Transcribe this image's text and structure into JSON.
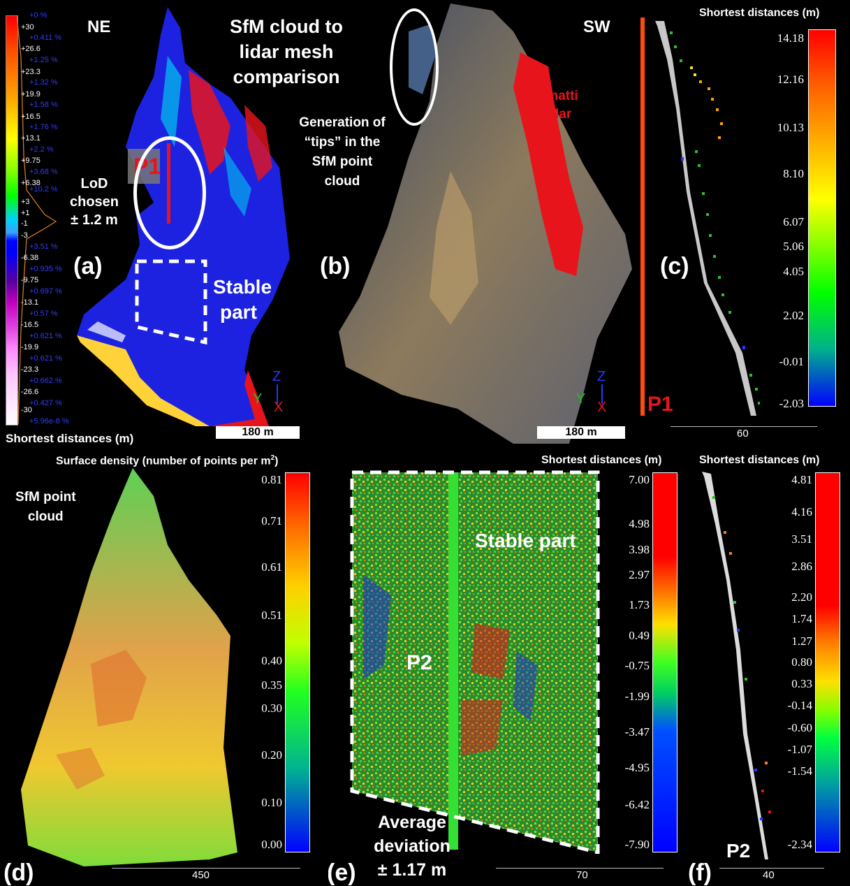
{
  "panel_a": {
    "label": "(a)",
    "ne": "NE",
    "title_lines": [
      "SfM cloud to",
      "lidar mesh",
      "comparison"
    ],
    "lod_lines": [
      "LoD",
      "chosen",
      "± 1.2 m"
    ],
    "p1": "P1",
    "stable_lines": [
      "Stable",
      "part"
    ],
    "scale": "180 m",
    "axes": {
      "z": "Z",
      "y": "Y",
      "x": "X"
    },
    "bottom_title": "Shortest distances (m)",
    "ticks": [
      "+30",
      "+26.6",
      "+23.3",
      "+19.9",
      "+16.5",
      "+13.1",
      "+9.75",
      "+6.38",
      "+3",
      "+1",
      "-1",
      "-3",
      "-6.38",
      "-9.75",
      "-13.1",
      "-16.5",
      "-19.9",
      "-23.3",
      "-26.6",
      "-30"
    ],
    "pcts": [
      "+0 %",
      "+0.411 %",
      "+1.25 %",
      "+1.32 %",
      "+1.58 %",
      "+1.76 %",
      "+2.2 %",
      "+3.68 %",
      "+10.2 %",
      "+3.51 %",
      "+0.935 %",
      "+0.697 %",
      "+0.57 %",
      "+0.621 %",
      "+0.621 %",
      "+0.662 %",
      "+0.427 %",
      "+5.96e-8 %"
    ]
  },
  "panel_b": {
    "label": "(b)",
    "sw": "SW",
    "gen_lines": [
      "Generation of",
      "“tips” in the",
      "SfM point",
      "cloud"
    ],
    "bonatti_lines": [
      "Bonatti",
      "Pillar"
    ],
    "scale": "180 m",
    "axes": {
      "z": "Z",
      "y": "Y",
      "x": "X"
    }
  },
  "panel_c": {
    "label": "(c)",
    "title": "Shortest distances (m)",
    "p1": "P1",
    "ticks": [
      "14.18",
      "12.16",
      "10.13",
      "8.10",
      "6.07",
      "5.06",
      "4.05",
      "2.02",
      "-0.01",
      "-2.03"
    ],
    "scale": "60"
  },
  "panel_d": {
    "label": "(d)",
    "title": "Surface density (number of points per m",
    "title_sup": "2",
    "title_end": ")",
    "cloud_lines": [
      "SfM point",
      "cloud"
    ],
    "ticks": [
      "0.81",
      "0.71",
      "0.61",
      "0.51",
      "0.40",
      "0.35",
      "0.30",
      "0.20",
      "0.10",
      "0.00"
    ],
    "scale": "450"
  },
  "panel_e": {
    "label": "(e)",
    "title": "Shortest distances (m)",
    "stable": "Stable part",
    "p2": "P2",
    "avg_lines": [
      "Average",
      "deviation",
      "± 1.17 m"
    ],
    "ticks": [
      "7.00",
      "4.98",
      "3.98",
      "2.97",
      "1.73",
      "0.49",
      "-0.75",
      "-1.99",
      "-3.47",
      "-4.95",
      "-6.42",
      "-7.90"
    ],
    "scale": "70"
  },
  "panel_f": {
    "label": "(f)",
    "title": "Shortest distances (m)",
    "p2": "P2",
    "ticks": [
      "4.81",
      "4.16",
      "3.51",
      "2.86",
      "2.20",
      "1.74",
      "1.27",
      "0.80",
      "0.33",
      "-0.14",
      "-0.60",
      "-1.07",
      "-1.54",
      "-2.34"
    ],
    "scale": "40"
  },
  "colors": {
    "red": "#e8141c",
    "blue_cloud": "#1d22e0",
    "accent_orange": "#ff4a12"
  }
}
